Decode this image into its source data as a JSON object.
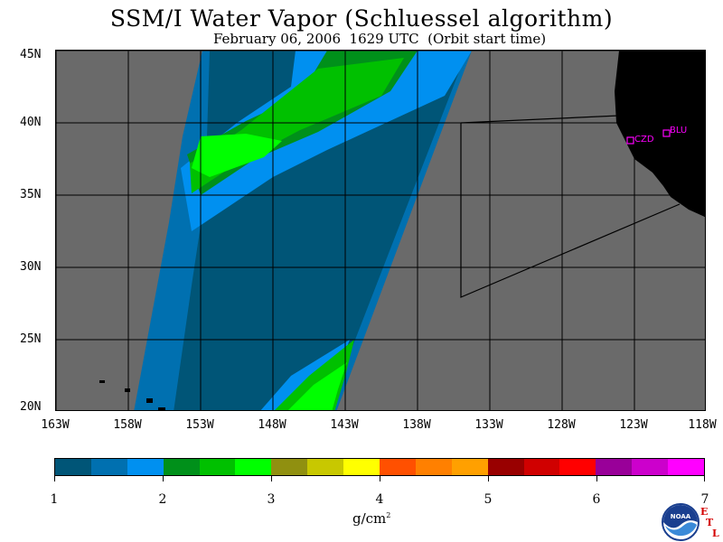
{
  "title": "SSM/I Water Vapor (Schluessel algorithm)",
  "subtitle": "February 06, 2006  1629 UTC  (Orbit start time)",
  "map": {
    "lat_labels": [
      "45N",
      "40N",
      "35N",
      "30N",
      "25N",
      "20N"
    ],
    "lon_labels": [
      "163W",
      "158W",
      "153W",
      "148W",
      "143W",
      "138W",
      "133W",
      "128W",
      "123W",
      "118W"
    ],
    "stations": [
      {
        "code": "CZD"
      },
      {
        "code": "BLU"
      }
    ],
    "colors": {
      "no_data": "#6a6a6a",
      "land": "#000000",
      "station": "#ff00ff"
    }
  },
  "colorbar": {
    "colors": [
      "#005577",
      "#0070b0",
      "#0090f0",
      "#00901a",
      "#00c000",
      "#00ff00",
      "#909010",
      "#c8c800",
      "#ffff00",
      "#ff5000",
      "#ff8000",
      "#ffa000",
      "#990000",
      "#d00000",
      "#ff0000",
      "#990099",
      "#cc00cc",
      "#ff00ff"
    ],
    "tick_labels": [
      "1",
      "2",
      "3",
      "4",
      "5",
      "6",
      "7"
    ],
    "unit": "g/cm",
    "unit_exponent": "2"
  },
  "logo": {
    "name": "NOAA",
    "etl": [
      "E",
      "T",
      "L"
    ]
  }
}
